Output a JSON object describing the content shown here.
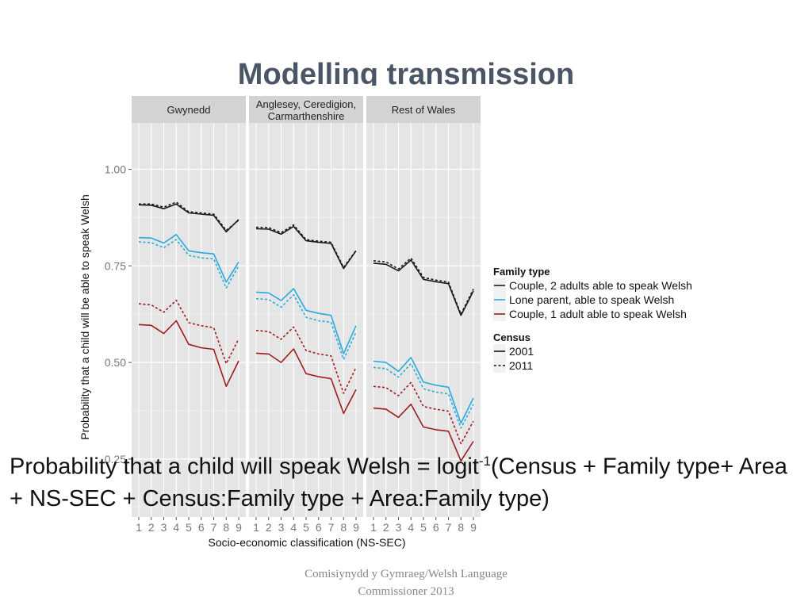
{
  "slide": {
    "title": "Modelling transmission",
    "formula": {
      "part1": "Probability that a child will speak Welsh = logit",
      "superscript": "-1",
      "part2": "(Census + Family type+ Area + NS-SEC +  Census:Family type + Area:Family type)"
    },
    "footer": {
      "line1": "Comisiynydd y Gymraeg/Welsh Language",
      "line2": "Commissioner 2013"
    }
  },
  "chart_data": {
    "type": "line",
    "ylabel": "Probability that a child will be able to speak Welsh",
    "xlabel": "Socio-economic classification (NS-SEC)",
    "x": [
      1,
      2,
      3,
      4,
      5,
      6,
      7,
      8,
      9
    ],
    "ylim": [
      0.1,
      1.12
    ],
    "yticks": [
      0.25,
      0.5,
      0.75,
      1.0
    ],
    "ytick_labels": [
      "0.25",
      "0.50",
      "0.75",
      "1.00"
    ],
    "grid": true,
    "legend_position": "right",
    "legend": {
      "family_title": "Family type",
      "family_items": [
        {
          "label": "Couple, 2 adults able to speak Welsh",
          "color": "#1a1a1a"
        },
        {
          "label": "Lone parent, able to speak Welsh",
          "color": "#29aadd"
        },
        {
          "label": "Couple, 1 adult able to speak Welsh",
          "color": "#a01c1c"
        }
      ],
      "census_title": "Census",
      "census_items": [
        {
          "label": "2001",
          "dash": "solid"
        },
        {
          "label": "2011",
          "dash": "dotted"
        }
      ]
    },
    "panels": [
      {
        "title": "Gwynedd",
        "series": [
          {
            "family": 0,
            "census": "2001",
            "values": [
              0.908,
              0.907,
              0.898,
              0.91,
              0.887,
              0.884,
              0.881,
              0.838,
              0.87
            ]
          },
          {
            "family": 0,
            "census": "2011",
            "values": [
              0.91,
              0.91,
              0.902,
              0.915,
              0.89,
              0.887,
              0.884,
              0.842,
              0.868
            ]
          },
          {
            "family": 1,
            "census": "2001",
            "values": [
              0.823,
              0.822,
              0.809,
              0.831,
              0.789,
              0.784,
              0.781,
              0.708,
              0.76
            ]
          },
          {
            "family": 1,
            "census": "2011",
            "values": [
              0.812,
              0.81,
              0.797,
              0.818,
              0.777,
              0.771,
              0.768,
              0.693,
              0.75
            ]
          },
          {
            "family": 2,
            "census": "2001",
            "values": [
              0.598,
              0.596,
              0.575,
              0.608,
              0.547,
              0.538,
              0.534,
              0.438,
              0.504
            ]
          },
          {
            "family": 2,
            "census": "2011",
            "values": [
              0.652,
              0.649,
              0.63,
              0.661,
              0.603,
              0.595,
              0.59,
              0.497,
              0.561
            ]
          }
        ]
      },
      {
        "title": "Anglesey, Ceredigion,\nCarmarthenshire",
        "series": [
          {
            "family": 0,
            "census": "2001",
            "values": [
              0.846,
              0.845,
              0.832,
              0.852,
              0.815,
              0.811,
              0.808,
              0.743,
              0.789
            ]
          },
          {
            "family": 0,
            "census": "2011",
            "values": [
              0.85,
              0.849,
              0.836,
              0.856,
              0.818,
              0.814,
              0.811,
              0.746,
              0.79
            ]
          },
          {
            "family": 1,
            "census": "2001",
            "values": [
              0.682,
              0.68,
              0.66,
              0.691,
              0.635,
              0.627,
              0.622,
              0.523,
              0.595
            ]
          },
          {
            "family": 1,
            "census": "2011",
            "values": [
              0.665,
              0.663,
              0.643,
              0.675,
              0.617,
              0.608,
              0.604,
              0.508,
              0.578
            ]
          },
          {
            "family": 2,
            "census": "2001",
            "values": [
              0.524,
              0.522,
              0.5,
              0.535,
              0.471,
              0.463,
              0.458,
              0.368,
              0.43
            ]
          },
          {
            "family": 2,
            "census": "2011",
            "values": [
              0.583,
              0.58,
              0.56,
              0.592,
              0.531,
              0.522,
              0.517,
              0.42,
              0.487
            ]
          }
        ]
      },
      {
        "title": "Rest of Wales",
        "series": [
          {
            "family": 0,
            "census": "2001",
            "values": [
              0.757,
              0.754,
              0.737,
              0.765,
              0.715,
              0.709,
              0.704,
              0.622,
              0.685
            ]
          },
          {
            "family": 0,
            "census": "2011",
            "values": [
              0.763,
              0.76,
              0.742,
              0.77,
              0.72,
              0.713,
              0.708,
              0.625,
              0.69
            ]
          },
          {
            "family": 1,
            "census": "2001",
            "values": [
              0.503,
              0.5,
              0.477,
              0.513,
              0.449,
              0.441,
              0.436,
              0.343,
              0.408
            ]
          },
          {
            "family": 1,
            "census": "2011",
            "values": [
              0.487,
              0.484,
              0.462,
              0.497,
              0.432,
              0.423,
              0.419,
              0.33,
              0.392
            ]
          },
          {
            "family": 2,
            "census": "2001",
            "values": [
              0.382,
              0.379,
              0.358,
              0.392,
              0.333,
              0.326,
              0.322,
              0.245,
              0.296
            ]
          },
          {
            "family": 2,
            "census": "2011",
            "values": [
              0.438,
              0.435,
              0.414,
              0.448,
              0.386,
              0.379,
              0.374,
              0.29,
              0.348
            ]
          }
        ]
      }
    ]
  }
}
